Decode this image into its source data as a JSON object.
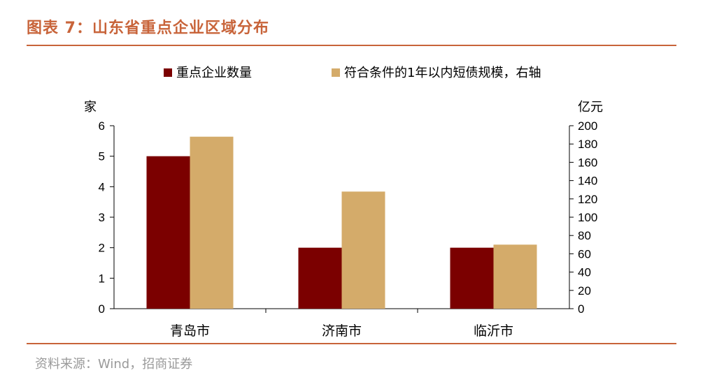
{
  "figure": {
    "title": "图表 7：山东省重点企业区域分布",
    "source": "资料来源：Wind，招商证券"
  },
  "chart_data": {
    "type": "bar",
    "categories": [
      "青岛市",
      "济南市",
      "临沂市"
    ],
    "series": [
      {
        "name": "重点企业数量",
        "axis": "left",
        "color": "#7b0000",
        "values": [
          5,
          2,
          2
        ]
      },
      {
        "name": "符合条件的1年以内短债规模，右轴",
        "axis": "right",
        "color": "#d4ab6a",
        "values": [
          188,
          128,
          70
        ]
      }
    ],
    "left_axis": {
      "label": "家",
      "min": 0,
      "max": 6,
      "ticks": [
        "0",
        "1",
        "2",
        "3",
        "4",
        "5",
        "6"
      ]
    },
    "right_axis": {
      "label": "亿元",
      "min": 0,
      "max": 200,
      "ticks": [
        "0",
        "20",
        "40",
        "60",
        "80",
        "100",
        "120",
        "140",
        "160",
        "180",
        "200"
      ]
    },
    "legend": "top",
    "grid": false
  }
}
